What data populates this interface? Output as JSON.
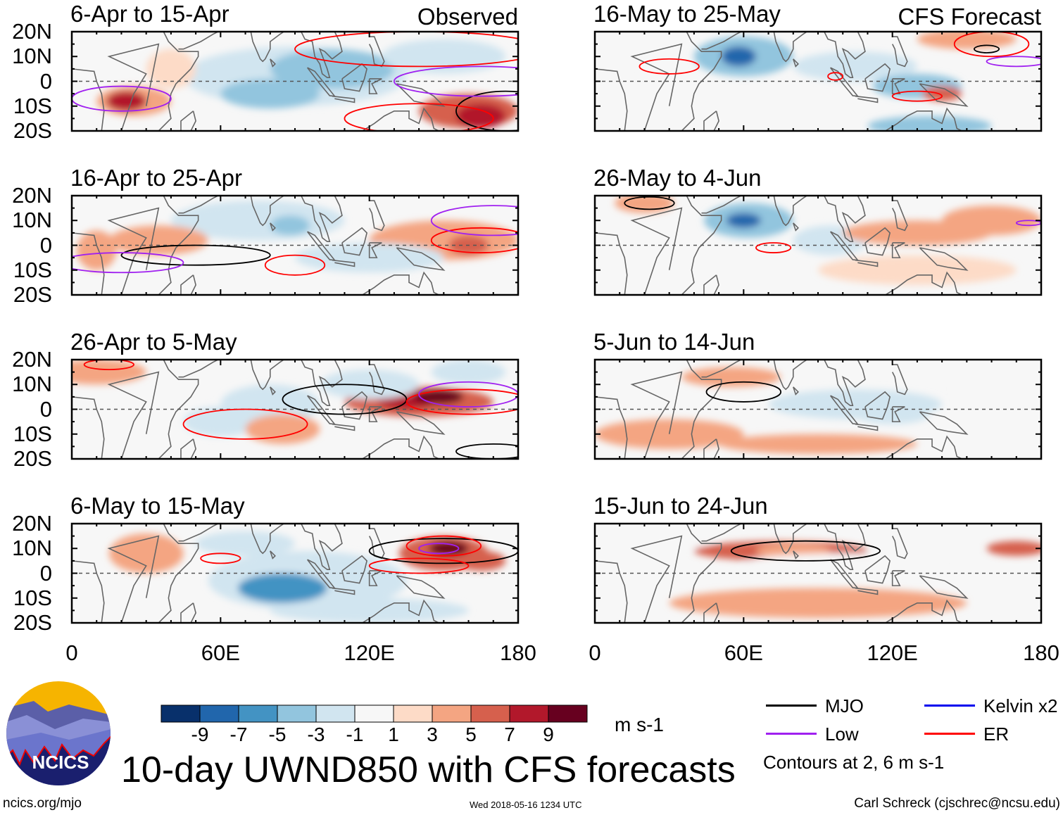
{
  "panels": [
    {
      "title": "6-Apr to 15-Apr",
      "tag": "Observed"
    },
    {
      "title": "16-Apr to 25-Apr"
    },
    {
      "title": "26-Apr to 5-May"
    },
    {
      "title": "6-May to 15-May"
    },
    {
      "title": "16-May to 25-May",
      "tag": "CFS Forecast"
    },
    {
      "title": "26-May to 4-Jun"
    },
    {
      "title": "5-Jun to 14-Jun"
    },
    {
      "title": "15-Jun to 24-Jun"
    }
  ],
  "chart_data": {
    "type": "heatmap",
    "title": "10-day UWND850 with CFS forecasts",
    "units": "m s-1",
    "lat_ticks": [
      "20N",
      "10N",
      "0",
      "10S",
      "20S"
    ],
    "lon_ticks": [
      "0",
      "60E",
      "120E",
      "180"
    ],
    "lat_range": [
      -20,
      20
    ],
    "lon_range": [
      0,
      180
    ],
    "colorbar": {
      "labels": [
        "-9",
        "-7",
        "-5",
        "-3",
        "-1",
        "1",
        "3",
        "5",
        "7",
        "9"
      ],
      "colors": [
        "#08306b",
        "#2166ac",
        "#4393c3",
        "#92c5de",
        "#d1e5f0",
        "#f7f7f7",
        "#fddbc7",
        "#f4a582",
        "#d6604d",
        "#b2182b",
        "#67001f"
      ]
    },
    "legend": [
      {
        "name": "MJO",
        "color": "#000000"
      },
      {
        "name": "Kelvin x2",
        "color": "#0000ee"
      },
      {
        "name": "Low",
        "color": "#a020f0"
      },
      {
        "name": "ER",
        "color": "#ff0000"
      }
    ],
    "contour_note": "Contours at 2, 6 m s-1"
  },
  "logo": {
    "text": "NCICS"
  },
  "footer": {
    "left": "ncics.org/mjo",
    "center": "Wed 2018-05-16 1234 UTC",
    "right": "Carl Schreck (cjschrec@ncsu.edu)"
  }
}
